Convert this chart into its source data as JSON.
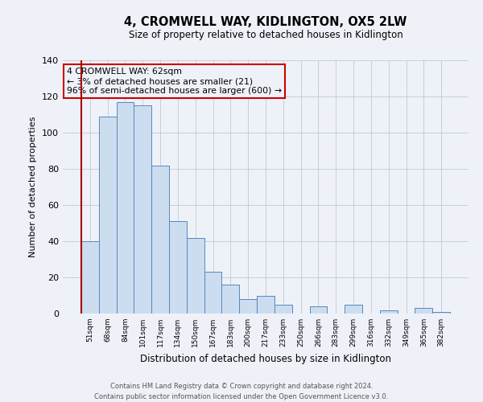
{
  "title": "4, CROMWELL WAY, KIDLINGTON, OX5 2LW",
  "subtitle": "Size of property relative to detached houses in Kidlington",
  "xlabel": "Distribution of detached houses by size in Kidlington",
  "ylabel": "Number of detached properties",
  "categories": [
    "51sqm",
    "68sqm",
    "84sqm",
    "101sqm",
    "117sqm",
    "134sqm",
    "150sqm",
    "167sqm",
    "183sqm",
    "200sqm",
    "217sqm",
    "233sqm",
    "250sqm",
    "266sqm",
    "283sqm",
    "299sqm",
    "316sqm",
    "332sqm",
    "349sqm",
    "365sqm",
    "382sqm"
  ],
  "values": [
    40,
    109,
    117,
    115,
    82,
    51,
    42,
    23,
    16,
    8,
    10,
    5,
    0,
    4,
    0,
    5,
    0,
    2,
    0,
    3,
    1
  ],
  "bar_color": "#ccddf0",
  "bar_edge_color": "#5588bb",
  "marker_line_color": "#aa0000",
  "ylim": [
    0,
    140
  ],
  "yticks": [
    0,
    20,
    40,
    60,
    80,
    100,
    120,
    140
  ],
  "annotation_line1": "4 CROMWELL WAY: 62sqm",
  "annotation_line2": "← 3% of detached houses are smaller (21)",
  "annotation_line3": "96% of semi-detached houses are larger (600) →",
  "annotation_box_edge_color": "#cc0000",
  "footer_line1": "Contains HM Land Registry data © Crown copyright and database right 2024.",
  "footer_line2": "Contains public sector information licensed under the Open Government Licence v3.0.",
  "background_color": "#eef2f8",
  "grid_color": "#c0c8d8"
}
